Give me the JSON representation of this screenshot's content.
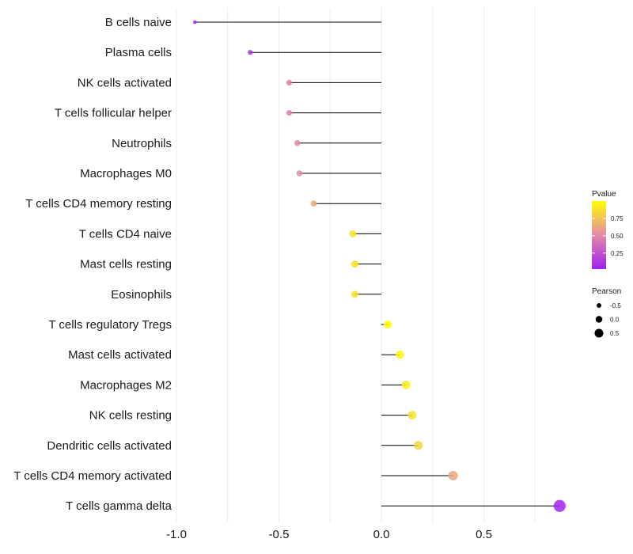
{
  "chart_data": {
    "type": "lollipop",
    "categories": [
      "B cells naive",
      "Plasma cells",
      "NK cells activated",
      "T cells follicular helper",
      "Neutrophils",
      "Macrophages M0",
      "T cells CD4 memory resting",
      "T cells CD4 naive",
      "Mast cells resting",
      "Eosinophils",
      "T cells regulatory  Tregs ",
      "Mast cells activated",
      "Macrophages M2",
      "NK cells resting",
      "Dendritic cells activated",
      "T cells CD4 memory activated",
      "T cells gamma delta"
    ],
    "pearson": [
      -0.91,
      -0.64,
      -0.45,
      -0.45,
      -0.41,
      -0.4,
      -0.33,
      -0.14,
      -0.13,
      -0.13,
      0.03,
      0.09,
      0.12,
      0.15,
      0.18,
      0.35,
      0.87
    ],
    "pvalue": [
      0.0,
      0.05,
      0.45,
      0.45,
      0.5,
      0.5,
      0.65,
      0.9,
      0.88,
      0.88,
      1.0,
      0.97,
      0.93,
      0.88,
      0.82,
      0.62,
      0.02
    ],
    "xlim": [
      -1.0,
      0.9
    ],
    "x_ticks": [
      -1.0,
      -0.5,
      0.0,
      0.5
    ],
    "x_tick_labels": [
      "-1.0",
      "-0.5",
      "0.0",
      "0.5"
    ],
    "color_scale": {
      "low": "#a020f0",
      "high": "#ffff00"
    },
    "legend_pvalue": {
      "title": "Pvalue",
      "ticks": [
        0.75,
        0.5,
        0.25
      ],
      "tick_labels": [
        "0.75",
        "0.50",
        "0.25"
      ]
    },
    "legend_pearson": {
      "title": "Pearson",
      "values": [
        -0.5,
        0.0,
        0.5
      ],
      "labels": [
        "-0.5",
        "0.0",
        "0.5"
      ]
    },
    "grid": true,
    "legend_position": "right"
  }
}
